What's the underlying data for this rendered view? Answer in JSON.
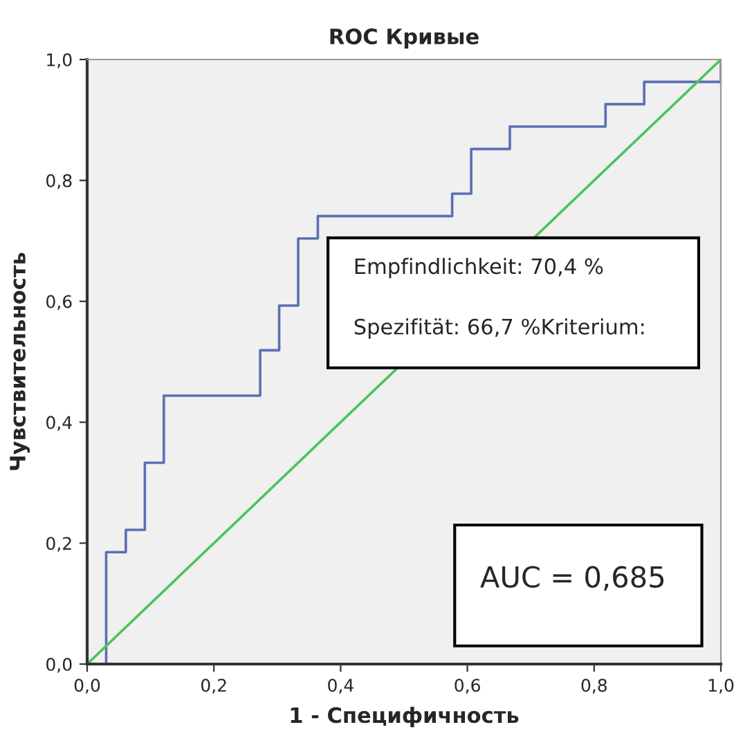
{
  "chart_data": {
    "type": "step",
    "title": "ROC Кривые",
    "xlabel": "1 - Специфичность",
    "ylabel": "Чувствительность",
    "series": [
      {
        "color": "#5b6fb5",
        "x": [
          0,
          0.03,
          0.061,
          0.091,
          0.121,
          0.273,
          0.303,
          0.333,
          0.364,
          0.576,
          0.606,
          0.667,
          0.818,
          0.879,
          1.0
        ],
        "values": [
          0,
          0.185,
          0.222,
          0.333,
          0.444,
          0.519,
          0.593,
          0.704,
          0.741,
          0.778,
          0.852,
          0.889,
          0.926,
          0.963,
          1.0
        ]
      },
      {
        "type": "line",
        "color": "#4cc35a",
        "x": [
          0,
          1
        ],
        "values": [
          0,
          1
        ]
      }
    ],
    "xlim": [
      0,
      1
    ],
    "ylim": [
      0,
      1
    ],
    "xticks": [
      {
        "value": 0,
        "label": "0,0"
      },
      {
        "value": 0.2,
        "label": "0,2"
      },
      {
        "value": 0.4,
        "label": "0,4"
      },
      {
        "value": 0.6,
        "label": "0,6"
      },
      {
        "value": 0.8,
        "label": "0,8"
      },
      {
        "value": 1,
        "label": "1,0"
      }
    ],
    "yticks": [
      {
        "value": 0,
        "label": "0,0"
      },
      {
        "value": 0.2,
        "label": "0,2"
      },
      {
        "value": 0.4,
        "label": "0,4"
      },
      {
        "value": 0.6,
        "label": "0,6"
      },
      {
        "value": 0.8,
        "label": "0,8"
      },
      {
        "value": 1,
        "label": "1,0"
      }
    ],
    "grid": false,
    "legend": false,
    "annotations": [
      "Empfindlichkeit: 70,4 %",
      "Spezifität: 66,7 %Kriterium:",
      "AUC = 0,685"
    ]
  }
}
